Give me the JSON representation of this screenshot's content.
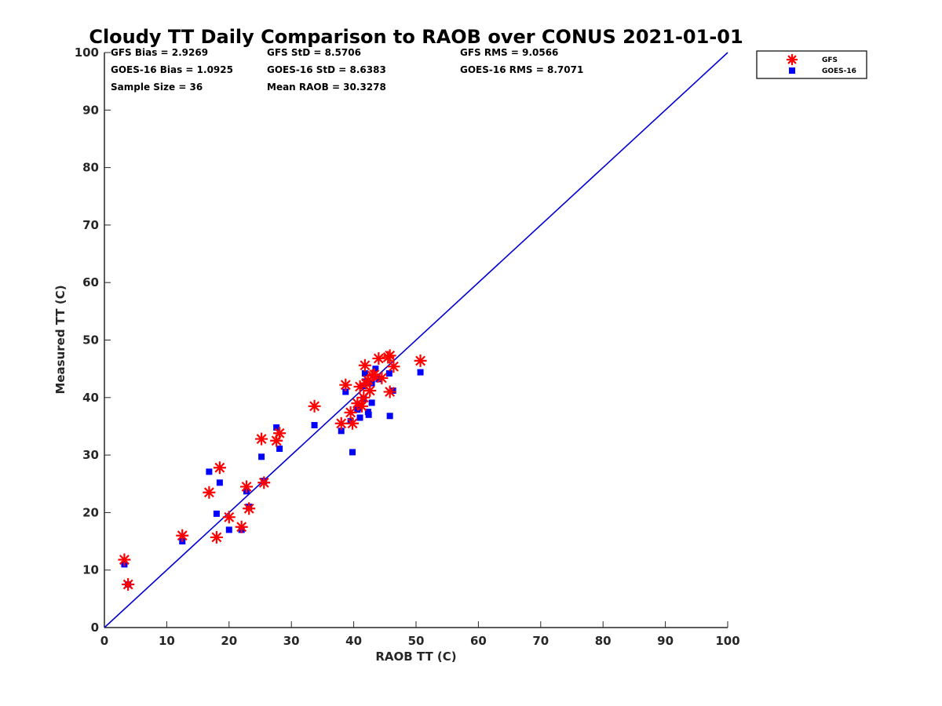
{
  "chart_data": {
    "type": "scatter",
    "title": "Cloudy TT Daily Comparison to RAOB over CONUS 2021-01-01",
    "xlabel": "RAOB TT (C)",
    "ylabel": "Measured TT (C)",
    "xlim": [
      0,
      100
    ],
    "ylim": [
      0,
      100
    ],
    "xticks": [
      0,
      10,
      20,
      30,
      40,
      50,
      60,
      70,
      80,
      90,
      100
    ],
    "yticks": [
      0,
      10,
      20,
      30,
      40,
      50,
      60,
      70,
      80,
      90,
      100
    ],
    "grid": false,
    "legend_position": "outside top-right",
    "reference_line": {
      "from": [
        0,
        0
      ],
      "to": [
        100,
        100
      ],
      "color": "#0000d4"
    },
    "stats": [
      [
        "GFS Bias = 2.9269",
        "GFS StD = 8.5706",
        "GFS RMS = 9.0566"
      ],
      [
        "GOES-16 Bias = 1.0925",
        "GOES-16 StD = 8.6383",
        "GOES-16 RMS = 8.7071"
      ],
      [
        "Sample Size = 36",
        "Mean RAOB = 30.3278",
        ""
      ]
    ],
    "series": [
      {
        "name": "GFS",
        "marker": "asterisk",
        "color": "#ff0000",
        "points": [
          [
            3.2,
            11.8
          ],
          [
            3.8,
            7.5
          ],
          [
            12.5,
            16.0
          ],
          [
            16.8,
            23.5
          ],
          [
            18.0,
            15.7
          ],
          [
            18.5,
            27.8
          ],
          [
            20.0,
            19.2
          ],
          [
            22.0,
            17.5
          ],
          [
            22.8,
            24.5
          ],
          [
            23.2,
            20.7
          ],
          [
            25.2,
            32.8
          ],
          [
            25.6,
            25.2
          ],
          [
            27.6,
            32.5
          ],
          [
            28.1,
            33.8
          ],
          [
            33.7,
            38.5
          ],
          [
            38.0,
            35.5
          ],
          [
            38.7,
            42.2
          ],
          [
            39.5,
            37.4
          ],
          [
            39.8,
            35.5
          ],
          [
            40.6,
            39.0
          ],
          [
            41.0,
            41.9
          ],
          [
            41.6,
            40.0
          ],
          [
            41.8,
            45.6
          ],
          [
            42.0,
            42.5
          ],
          [
            42.3,
            43.0
          ],
          [
            42.6,
            41.2
          ],
          [
            43.0,
            43.8
          ],
          [
            43.3,
            44.0
          ],
          [
            44.0,
            46.8
          ],
          [
            45.5,
            47.0
          ],
          [
            45.8,
            47.3
          ],
          [
            45.8,
            41.0
          ],
          [
            46.4,
            45.4
          ],
          [
            50.7,
            46.4
          ],
          [
            41.3,
            38.5
          ],
          [
            44.5,
            43.4
          ]
        ]
      },
      {
        "name": "GOES-16",
        "marker": "square",
        "color": "#0000ff",
        "points": [
          [
            3.2,
            11.0
          ],
          [
            3.8,
            7.5
          ],
          [
            12.5,
            15.0
          ],
          [
            16.8,
            27.1
          ],
          [
            18.0,
            19.8
          ],
          [
            18.5,
            25.2
          ],
          [
            20.0,
            17.0
          ],
          [
            22.0,
            17.0
          ],
          [
            22.8,
            23.7
          ],
          [
            23.2,
            21.0
          ],
          [
            25.2,
            29.7
          ],
          [
            25.6,
            25.5
          ],
          [
            27.6,
            34.8
          ],
          [
            28.1,
            31.1
          ],
          [
            33.7,
            35.2
          ],
          [
            38.0,
            34.2
          ],
          [
            38.7,
            41.0
          ],
          [
            39.5,
            35.9
          ],
          [
            39.8,
            30.5
          ],
          [
            40.6,
            37.9
          ],
          [
            41.0,
            36.5
          ],
          [
            41.6,
            39.8
          ],
          [
            41.8,
            44.2
          ],
          [
            42.0,
            42.8
          ],
          [
            42.3,
            37.5
          ],
          [
            42.4,
            37.0
          ],
          [
            42.9,
            39.1
          ],
          [
            43.5,
            45.0
          ],
          [
            44.0,
            43.2
          ],
          [
            45.7,
            44.2
          ],
          [
            45.8,
            36.8
          ],
          [
            46.3,
            41.2
          ],
          [
            50.7,
            44.4
          ],
          [
            41.5,
            42.0
          ],
          [
            40.8,
            38.2
          ],
          [
            42.9,
            42.5
          ]
        ]
      }
    ]
  }
}
